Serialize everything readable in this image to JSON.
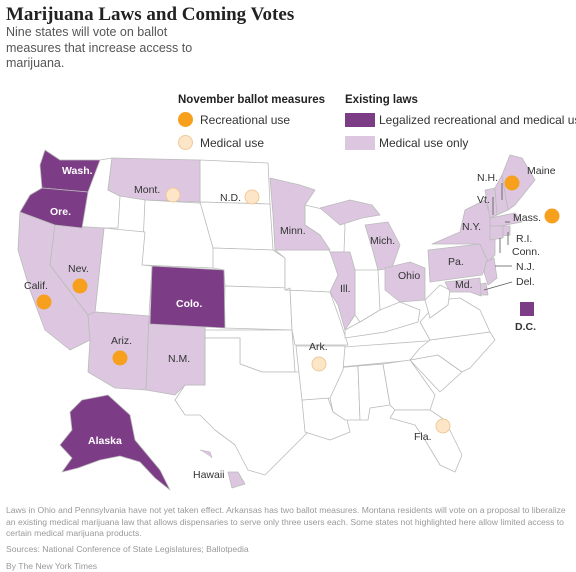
{
  "header": {
    "title": "Marijuana Laws and Coming Votes",
    "subtitle": "Nine states will vote on ballot measures that increase access to marijuana."
  },
  "legend": {
    "ballot_heading": "November ballot measures",
    "ballot_items": [
      {
        "label": "Recreational use",
        "color": "#f6a01e"
      },
      {
        "label": "Medical use",
        "color": "#fde5c7"
      }
    ],
    "laws_heading": "Existing laws",
    "laws_items": [
      {
        "label": "Legalized recreational and medical uses",
        "color": "#7d3c86"
      },
      {
        "label": "Medical use only",
        "color": "#dcc6e0"
      }
    ]
  },
  "colors": {
    "legalized": "#7d3c86",
    "medical_only": "#dcc6e0",
    "no_law": "#ffffff",
    "recreational_dot": "#f6a01e",
    "medical_dot": "#fde5c7",
    "border": "#bbbbbb"
  },
  "map": {
    "states": [
      {
        "name": "Washington",
        "label": "Wash.",
        "law": "legalized"
      },
      {
        "name": "Oregon",
        "label": "Ore.",
        "law": "legalized"
      },
      {
        "name": "California",
        "label": "Calif.",
        "law": "medical_only",
        "ballot": "recreational"
      },
      {
        "name": "Nevada",
        "label": "Nev.",
        "law": "medical_only",
        "ballot": "recreational"
      },
      {
        "name": "Arizona",
        "label": "Ariz.",
        "law": "medical_only",
        "ballot": "recreational"
      },
      {
        "name": "Montana",
        "label": "Mont.",
        "law": "medical_only",
        "ballot": "medical"
      },
      {
        "name": "North Dakota",
        "label": "N.D.",
        "law": "none",
        "ballot": "medical"
      },
      {
        "name": "Minnesota",
        "label": "Minn.",
        "law": "medical_only"
      },
      {
        "name": "Colorado",
        "label": "Colo.",
        "law": "legalized"
      },
      {
        "name": "New Mexico",
        "label": "N.M.",
        "law": "medical_only"
      },
      {
        "name": "Arkansas",
        "label": "Ark.",
        "law": "none",
        "ballot": "medical"
      },
      {
        "name": "Illinois",
        "label": "Ill.",
        "law": "medical_only"
      },
      {
        "name": "Michigan",
        "label": "Mich.",
        "law": "medical_only"
      },
      {
        "name": "Ohio",
        "label": "Ohio",
        "law": "medical_only"
      },
      {
        "name": "Pennsylvania",
        "label": "Pa.",
        "law": "medical_only"
      },
      {
        "name": "New York",
        "label": "N.Y.",
        "law": "medical_only"
      },
      {
        "name": "Maine",
        "label": "Maine",
        "law": "medical_only",
        "ballot": "recreational"
      },
      {
        "name": "New Hampshire",
        "label": "N.H.",
        "law": "medical_only"
      },
      {
        "name": "Vermont",
        "label": "Vt.",
        "law": "medical_only"
      },
      {
        "name": "Massachusetts",
        "label": "Mass.",
        "law": "medical_only",
        "ballot": "recreational"
      },
      {
        "name": "Rhode Island",
        "label": "R.I.",
        "law": "medical_only"
      },
      {
        "name": "Connecticut",
        "label": "Conn.",
        "law": "medical_only"
      },
      {
        "name": "New Jersey",
        "label": "N.J.",
        "law": "medical_only"
      },
      {
        "name": "Delaware",
        "label": "Del.",
        "law": "medical_only"
      },
      {
        "name": "Maryland",
        "label": "Md.",
        "law": "medical_only"
      },
      {
        "name": "District of Columbia",
        "label": "D.C.",
        "law": "legalized"
      },
      {
        "name": "Florida",
        "label": "Fla.",
        "law": "none",
        "ballot": "medical"
      },
      {
        "name": "Alaska",
        "label": "Alaska",
        "law": "legalized"
      },
      {
        "name": "Hawaii",
        "label": "Hawaii",
        "law": "medical_only"
      }
    ]
  },
  "footer": {
    "note": "Laws in Ohio and Pennsylvania have not yet taken effect. Arkansas has two ballot measures. Montana residents will vote on a proposal to liberalize an existing medical marijuana law that allows dispensaries to serve only three users each. Some states not highlighted here allow limited access to certain medical marijuana products.",
    "sources": "Sources: National Conference of State Legislatures; Ballotpedia",
    "credit": "By The New York Times"
  }
}
